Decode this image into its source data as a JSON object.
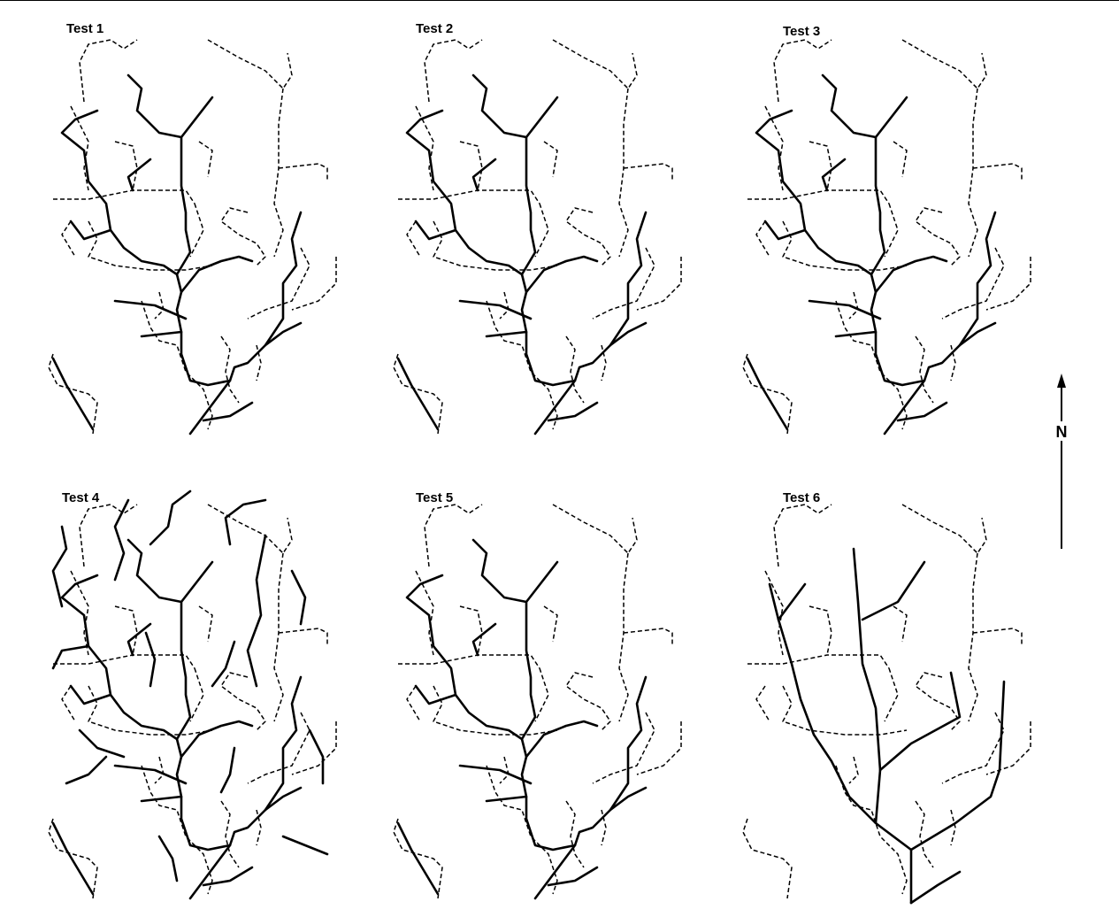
{
  "panels": [
    {
      "title": "Test 1"
    },
    {
      "title": "Test 2"
    },
    {
      "title": "Test 3"
    },
    {
      "title": "Test 4"
    },
    {
      "title": "Test 5"
    },
    {
      "title": "Test 6"
    }
  ],
  "north_label": "N"
}
